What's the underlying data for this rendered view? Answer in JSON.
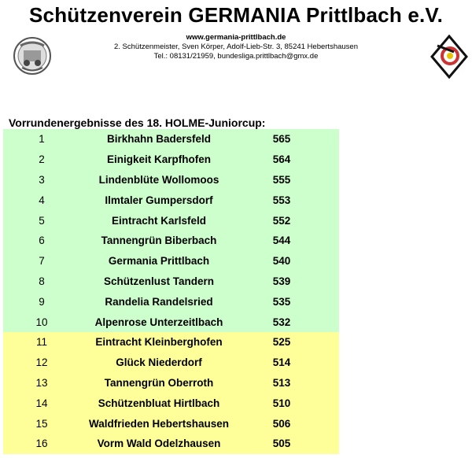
{
  "header": {
    "title": "Schützenverein GERMANIA Prittlbach e.V.",
    "url": "www.germania-prittlbach.de",
    "address": "2. Schützenmeister, Sven Körper, Adolf-Lieb-Str. 3, 85241 Hebertshausen",
    "contact": "Tel.: 08131/21959, bundesliga.prittlbach@gmx.de"
  },
  "heading": "Vorrundenergebnisse des 18. HOLME-Juniorcup:",
  "colors": {
    "qualified": "#ccffcc",
    "other": "#ffff99"
  },
  "results": [
    {
      "rank": "1",
      "club": "Birkhahn Badersfeld",
      "score": "565",
      "group": "qualified"
    },
    {
      "rank": "2",
      "club": "Einigkeit Karpfhofen",
      "score": "564",
      "group": "qualified"
    },
    {
      "rank": "3",
      "club": "Lindenblüte Wollomoos",
      "score": "555",
      "group": "qualified"
    },
    {
      "rank": "4",
      "club": "Ilmtaler Gumpersdorf",
      "score": "553",
      "group": "qualified"
    },
    {
      "rank": "5",
      "club": "Eintracht Karlsfeld",
      "score": "552",
      "group": "qualified"
    },
    {
      "rank": "6",
      "club": "Tannengrün Biberbach",
      "score": "544",
      "group": "qualified"
    },
    {
      "rank": "7",
      "club": "Germania Prittlbach",
      "score": "540",
      "group": "qualified"
    },
    {
      "rank": "8",
      "club": "Schützenlust Tandern",
      "score": "539",
      "group": "qualified"
    },
    {
      "rank": "9",
      "club": "Randelia Randelsried",
      "score": "535",
      "group": "qualified"
    },
    {
      "rank": "10",
      "club": "Alpenrose Unterzeitlbach",
      "score": "532",
      "group": "qualified"
    },
    {
      "rank": "11",
      "club": "Eintracht Kleinberghofen",
      "score": "525",
      "group": "other"
    },
    {
      "rank": "12",
      "club": "Glück Niederdorf",
      "score": "514",
      "group": "other"
    },
    {
      "rank": "13",
      "club": "Tannengrün Oberroth",
      "score": "513",
      "group": "other"
    },
    {
      "rank": "14",
      "club": "Schützenbluat Hirtlbach",
      "score": "510",
      "group": "other"
    },
    {
      "rank": "15",
      "club": "Waldfrieden Hebertshausen",
      "score": "506",
      "group": "other"
    },
    {
      "rank": "16",
      "club": "Vorm Wald Odelzhausen",
      "score": "505",
      "group": "other"
    }
  ]
}
